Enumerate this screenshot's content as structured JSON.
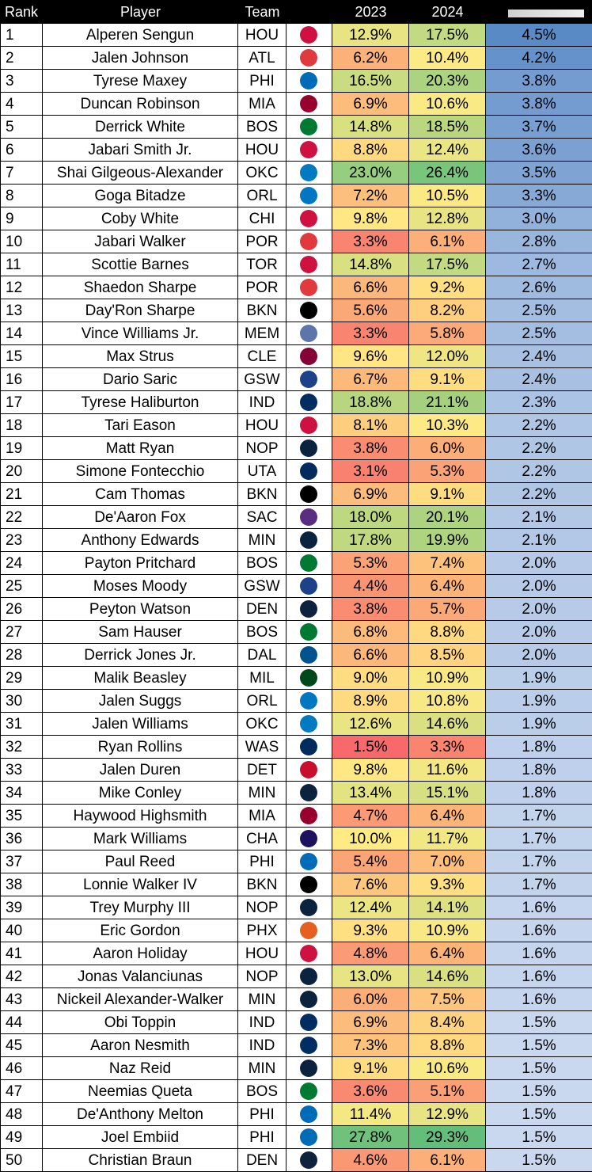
{
  "headers": {
    "rank": "Rank",
    "player": "Player",
    "team": "Team",
    "y2023": "2023",
    "y2024": "2024"
  },
  "colors": {
    "low": "#f8696b",
    "mid": "#ffeb84",
    "high": "#63be7b",
    "diff_high": "#5a8ac6",
    "diff_low": "#c9d8ef"
  },
  "team_icons": {
    "HOU": {
      "icon": "rockets-logo-icon",
      "color": "#ce1141"
    },
    "ATL": {
      "icon": "hawks-logo-icon",
      "color": "#e03a3e"
    },
    "PHI": {
      "icon": "76ers-logo-icon",
      "color": "#006bb6"
    },
    "MIA": {
      "icon": "heat-logo-icon",
      "color": "#98002e"
    },
    "BOS": {
      "icon": "celtics-logo-icon",
      "color": "#007a33"
    },
    "OKC": {
      "icon": "thunder-logo-icon",
      "color": "#007ac1"
    },
    "ORL": {
      "icon": "magic-logo-icon",
      "color": "#0077c0"
    },
    "CHI": {
      "icon": "bulls-logo-icon",
      "color": "#ce1141"
    },
    "POR": {
      "icon": "blazers-logo-icon",
      "color": "#e03a3e"
    },
    "TOR": {
      "icon": "raptors-logo-icon",
      "color": "#ce1141"
    },
    "BKN": {
      "icon": "nets-logo-icon",
      "color": "#000000"
    },
    "MEM": {
      "icon": "grizzlies-logo-icon",
      "color": "#5d76a9"
    },
    "CLE": {
      "icon": "cavaliers-logo-icon",
      "color": "#860038"
    },
    "GSW": {
      "icon": "warriors-logo-icon",
      "color": "#1d428a"
    },
    "IND": {
      "icon": "pacers-logo-icon",
      "color": "#002d62"
    },
    "NOP": {
      "icon": "pelicans-logo-icon",
      "color": "#0c2340"
    },
    "UTA": {
      "icon": "jazz-logo-icon",
      "color": "#002b5c"
    },
    "SAC": {
      "icon": "kings-logo-icon",
      "color": "#5a2d81"
    },
    "MIN": {
      "icon": "timberwolves-logo-icon",
      "color": "#0c2340"
    },
    "DEN": {
      "icon": "nuggets-logo-icon",
      "color": "#0e2240"
    },
    "DAL": {
      "icon": "mavericks-logo-icon",
      "color": "#00538c"
    },
    "MIL": {
      "icon": "bucks-logo-icon",
      "color": "#00471b"
    },
    "WAS": {
      "icon": "wizards-logo-icon",
      "color": "#002b5c"
    },
    "DET": {
      "icon": "pistons-logo-icon",
      "color": "#c8102e"
    },
    "CHA": {
      "icon": "hornets-logo-icon",
      "color": "#1d1160"
    },
    "PHX": {
      "icon": "suns-logo-icon",
      "color": "#e56020"
    }
  },
  "chart_data": {
    "type": "table",
    "columns": [
      "Rank",
      "Player",
      "Team",
      "2023",
      "2024",
      ""
    ],
    "rows": [
      {
        "rank": "1",
        "player": "Alperen Sengun",
        "team": "HOU",
        "y2023": "12.9%",
        "y2024": "17.5%",
        "diff": "4.5%"
      },
      {
        "rank": "2",
        "player": "Jalen Johnson",
        "team": "ATL",
        "y2023": "6.2%",
        "y2024": "10.4%",
        "diff": "4.2%"
      },
      {
        "rank": "3",
        "player": "Tyrese Maxey",
        "team": "PHI",
        "y2023": "16.5%",
        "y2024": "20.3%",
        "diff": "3.8%"
      },
      {
        "rank": "4",
        "player": "Duncan Robinson",
        "team": "MIA",
        "y2023": "6.9%",
        "y2024": "10.6%",
        "diff": "3.8%"
      },
      {
        "rank": "5",
        "player": "Derrick White",
        "team": "BOS",
        "y2023": "14.8%",
        "y2024": "18.5%",
        "diff": "3.7%"
      },
      {
        "rank": "6",
        "player": "Jabari Smith Jr.",
        "team": "HOU",
        "y2023": "8.8%",
        "y2024": "12.4%",
        "diff": "3.6%"
      },
      {
        "rank": "7",
        "player": "Shai Gilgeous-Alexander",
        "team": "OKC",
        "y2023": "23.0%",
        "y2024": "26.4%",
        "diff": "3.5%"
      },
      {
        "rank": "8",
        "player": "Goga Bitadze",
        "team": "ORL",
        "y2023": "7.2%",
        "y2024": "10.5%",
        "diff": "3.3%"
      },
      {
        "rank": "9",
        "player": "Coby White",
        "team": "CHI",
        "y2023": "9.8%",
        "y2024": "12.8%",
        "diff": "3.0%"
      },
      {
        "rank": "10",
        "player": "Jabari Walker",
        "team": "POR",
        "y2023": "3.3%",
        "y2024": "6.1%",
        "diff": "2.8%"
      },
      {
        "rank": "11",
        "player": "Scottie Barnes",
        "team": "TOR",
        "y2023": "14.8%",
        "y2024": "17.5%",
        "diff": "2.7%"
      },
      {
        "rank": "12",
        "player": "Shaedon Sharpe",
        "team": "POR",
        "y2023": "6.6%",
        "y2024": "9.2%",
        "diff": "2.6%"
      },
      {
        "rank": "13",
        "player": "Day'Ron Sharpe",
        "team": "BKN",
        "y2023": "5.6%",
        "y2024": "8.2%",
        "diff": "2.5%"
      },
      {
        "rank": "14",
        "player": "Vince Williams Jr.",
        "team": "MEM",
        "y2023": "3.3%",
        "y2024": "5.8%",
        "diff": "2.5%"
      },
      {
        "rank": "15",
        "player": "Max Strus",
        "team": "CLE",
        "y2023": "9.6%",
        "y2024": "12.0%",
        "diff": "2.4%"
      },
      {
        "rank": "16",
        "player": "Dario Saric",
        "team": "GSW",
        "y2023": "6.7%",
        "y2024": "9.1%",
        "diff": "2.4%"
      },
      {
        "rank": "17",
        "player": "Tyrese Haliburton",
        "team": "IND",
        "y2023": "18.8%",
        "y2024": "21.1%",
        "diff": "2.3%"
      },
      {
        "rank": "18",
        "player": "Tari Eason",
        "team": "HOU",
        "y2023": "8.1%",
        "y2024": "10.3%",
        "diff": "2.2%"
      },
      {
        "rank": "19",
        "player": "Matt Ryan",
        "team": "NOP",
        "y2023": "3.8%",
        "y2024": "6.0%",
        "diff": "2.2%"
      },
      {
        "rank": "20",
        "player": "Simone Fontecchio",
        "team": "UTA",
        "y2023": "3.1%",
        "y2024": "5.3%",
        "diff": "2.2%"
      },
      {
        "rank": "21",
        "player": "Cam Thomas",
        "team": "BKN",
        "y2023": "6.9%",
        "y2024": "9.1%",
        "diff": "2.2%"
      },
      {
        "rank": "22",
        "player": "De'Aaron Fox",
        "team": "SAC",
        "y2023": "18.0%",
        "y2024": "20.1%",
        "diff": "2.1%"
      },
      {
        "rank": "23",
        "player": "Anthony Edwards",
        "team": "MIN",
        "y2023": "17.8%",
        "y2024": "19.9%",
        "diff": "2.1%"
      },
      {
        "rank": "24",
        "player": "Payton Pritchard",
        "team": "BOS",
        "y2023": "5.3%",
        "y2024": "7.4%",
        "diff": "2.0%"
      },
      {
        "rank": "25",
        "player": "Moses Moody",
        "team": "GSW",
        "y2023": "4.4%",
        "y2024": "6.4%",
        "diff": "2.0%"
      },
      {
        "rank": "26",
        "player": "Peyton Watson",
        "team": "DEN",
        "y2023": "3.8%",
        "y2024": "5.7%",
        "diff": "2.0%"
      },
      {
        "rank": "27",
        "player": "Sam Hauser",
        "team": "BOS",
        "y2023": "6.8%",
        "y2024": "8.8%",
        "diff": "2.0%"
      },
      {
        "rank": "28",
        "player": "Derrick Jones Jr.",
        "team": "DAL",
        "y2023": "6.6%",
        "y2024": "8.5%",
        "diff": "2.0%"
      },
      {
        "rank": "29",
        "player": "Malik Beasley",
        "team": "MIL",
        "y2023": "9.0%",
        "y2024": "10.9%",
        "diff": "1.9%"
      },
      {
        "rank": "30",
        "player": "Jalen Suggs",
        "team": "ORL",
        "y2023": "8.9%",
        "y2024": "10.8%",
        "diff": "1.9%"
      },
      {
        "rank": "31",
        "player": "Jalen Williams",
        "team": "OKC",
        "y2023": "12.6%",
        "y2024": "14.6%",
        "diff": "1.9%"
      },
      {
        "rank": "32",
        "player": "Ryan Rollins",
        "team": "WAS",
        "y2023": "1.5%",
        "y2024": "3.3%",
        "diff": "1.8%"
      },
      {
        "rank": "33",
        "player": "Jalen Duren",
        "team": "DET",
        "y2023": "9.8%",
        "y2024": "11.6%",
        "diff": "1.8%"
      },
      {
        "rank": "34",
        "player": "Mike Conley",
        "team": "MIN",
        "y2023": "13.4%",
        "y2024": "15.1%",
        "diff": "1.8%"
      },
      {
        "rank": "35",
        "player": "Haywood Highsmith",
        "team": "MIA",
        "y2023": "4.7%",
        "y2024": "6.4%",
        "diff": "1.7%"
      },
      {
        "rank": "36",
        "player": "Mark Williams",
        "team": "CHA",
        "y2023": "10.0%",
        "y2024": "11.7%",
        "diff": "1.7%"
      },
      {
        "rank": "37",
        "player": "Paul Reed",
        "team": "PHI",
        "y2023": "5.4%",
        "y2024": "7.0%",
        "diff": "1.7%"
      },
      {
        "rank": "38",
        "player": "Lonnie Walker IV",
        "team": "BKN",
        "y2023": "7.6%",
        "y2024": "9.3%",
        "diff": "1.7%"
      },
      {
        "rank": "39",
        "player": "Trey Murphy III",
        "team": "NOP",
        "y2023": "12.4%",
        "y2024": "14.1%",
        "diff": "1.6%"
      },
      {
        "rank": "40",
        "player": "Eric Gordon",
        "team": "PHX",
        "y2023": "9.3%",
        "y2024": "10.9%",
        "diff": "1.6%"
      },
      {
        "rank": "41",
        "player": "Aaron Holiday",
        "team": "HOU",
        "y2023": "4.8%",
        "y2024": "6.4%",
        "diff": "1.6%"
      },
      {
        "rank": "42",
        "player": "Jonas Valanciunas",
        "team": "NOP",
        "y2023": "13.0%",
        "y2024": "14.6%",
        "diff": "1.6%"
      },
      {
        "rank": "43",
        "player": "Nickeil Alexander-Walker",
        "team": "MIN",
        "y2023": "6.0%",
        "y2024": "7.5%",
        "diff": "1.6%"
      },
      {
        "rank": "44",
        "player": "Obi Toppin",
        "team": "IND",
        "y2023": "6.9%",
        "y2024": "8.4%",
        "diff": "1.5%"
      },
      {
        "rank": "45",
        "player": "Aaron Nesmith",
        "team": "IND",
        "y2023": "7.3%",
        "y2024": "8.8%",
        "diff": "1.5%"
      },
      {
        "rank": "46",
        "player": "Naz Reid",
        "team": "MIN",
        "y2023": "9.1%",
        "y2024": "10.6%",
        "diff": "1.5%"
      },
      {
        "rank": "47",
        "player": "Neemias Queta",
        "team": "BOS",
        "y2023": "3.6%",
        "y2024": "5.1%",
        "diff": "1.5%"
      },
      {
        "rank": "48",
        "player": "De'Anthony Melton",
        "team": "PHI",
        "y2023": "11.4%",
        "y2024": "12.9%",
        "diff": "1.5%"
      },
      {
        "rank": "49",
        "player": "Joel Embiid",
        "team": "PHI",
        "y2023": "27.8%",
        "y2024": "29.3%",
        "diff": "1.5%"
      },
      {
        "rank": "50",
        "player": "Christian Braun",
        "team": "DEN",
        "y2023": "4.6%",
        "y2024": "6.1%",
        "diff": "1.5%"
      }
    ]
  }
}
